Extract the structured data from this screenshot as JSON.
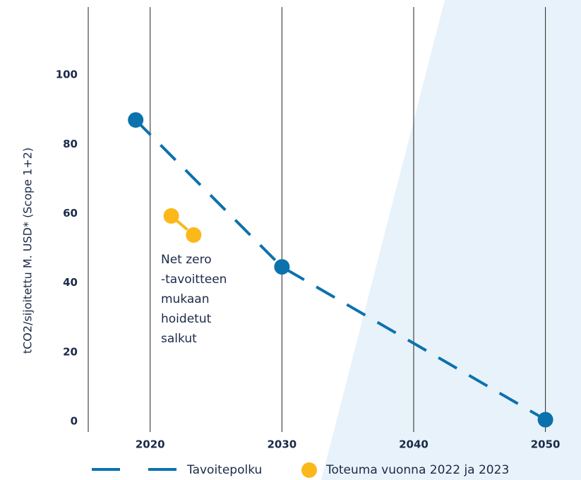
{
  "chart_data": {
    "type": "line",
    "y_label": "tCO2/sijoitettu M. USD* (Scope 1+2)",
    "annotation_lines": [
      "Net zero",
      "-tavoitteen",
      "mukaan",
      "hoidetut",
      "salkut"
    ],
    "xlim": [
      2015.3,
      2052.7
    ],
    "xticks": [
      2020,
      2030,
      2040,
      2050
    ],
    "ylim": [
      0,
      120
    ],
    "yticks": [
      0,
      20,
      40,
      60,
      80,
      100
    ],
    "grid": true,
    "legend": "bottom",
    "series": [
      {
        "name": "Tavoitepolku",
        "color": "#0b72ad",
        "dashed": true,
        "x": [
          2018.9,
          2030,
          2050
        ],
        "values": [
          87,
          44.6,
          0.5
        ]
      },
      {
        "name": "Toteuma vuonna 2022 ja 2023",
        "color": "#fbb81b",
        "dashed": true,
        "x": [
          2021.6,
          2023.3
        ],
        "values": [
          59.3,
          53.8
        ]
      }
    ]
  }
}
